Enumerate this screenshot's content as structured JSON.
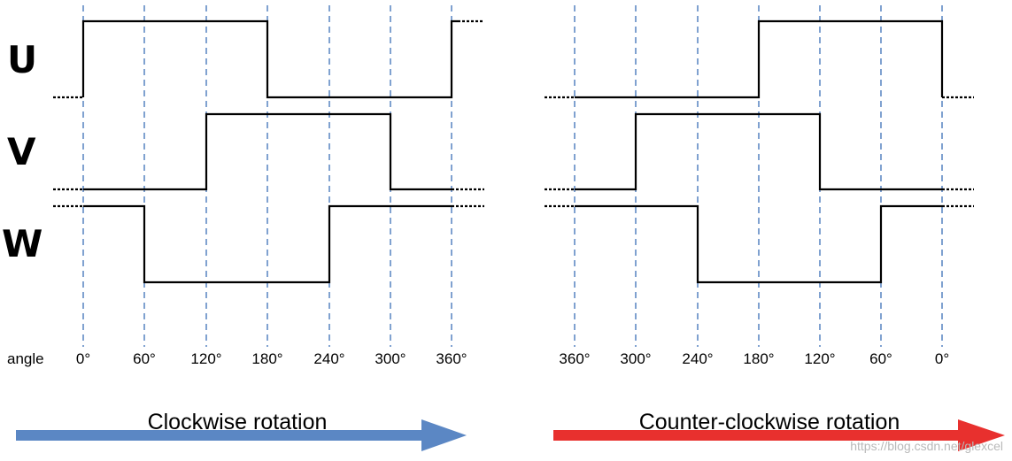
{
  "phases": [
    {
      "id": "u",
      "label": "U"
    },
    {
      "id": "v",
      "label": "V"
    },
    {
      "id": "w",
      "label": "W"
    }
  ],
  "angle_axis_label": "angle",
  "panels": [
    {
      "id": "clockwise",
      "angles": [
        "0°",
        "60°",
        "120°",
        "180°",
        "240°",
        "300°",
        "360°"
      ],
      "caption": "Clockwise rotation",
      "arrow_color": "#5b87c4"
    },
    {
      "id": "counter-clockwise",
      "angles": [
        "360°",
        "300°",
        "240°",
        "180°",
        "120°",
        "60°",
        "0°"
      ],
      "caption": "Counter-clockwise rotation",
      "arrow_color": "#e8302e"
    }
  ],
  "watermark": "https://blog.csdn.net/glexcel"
}
